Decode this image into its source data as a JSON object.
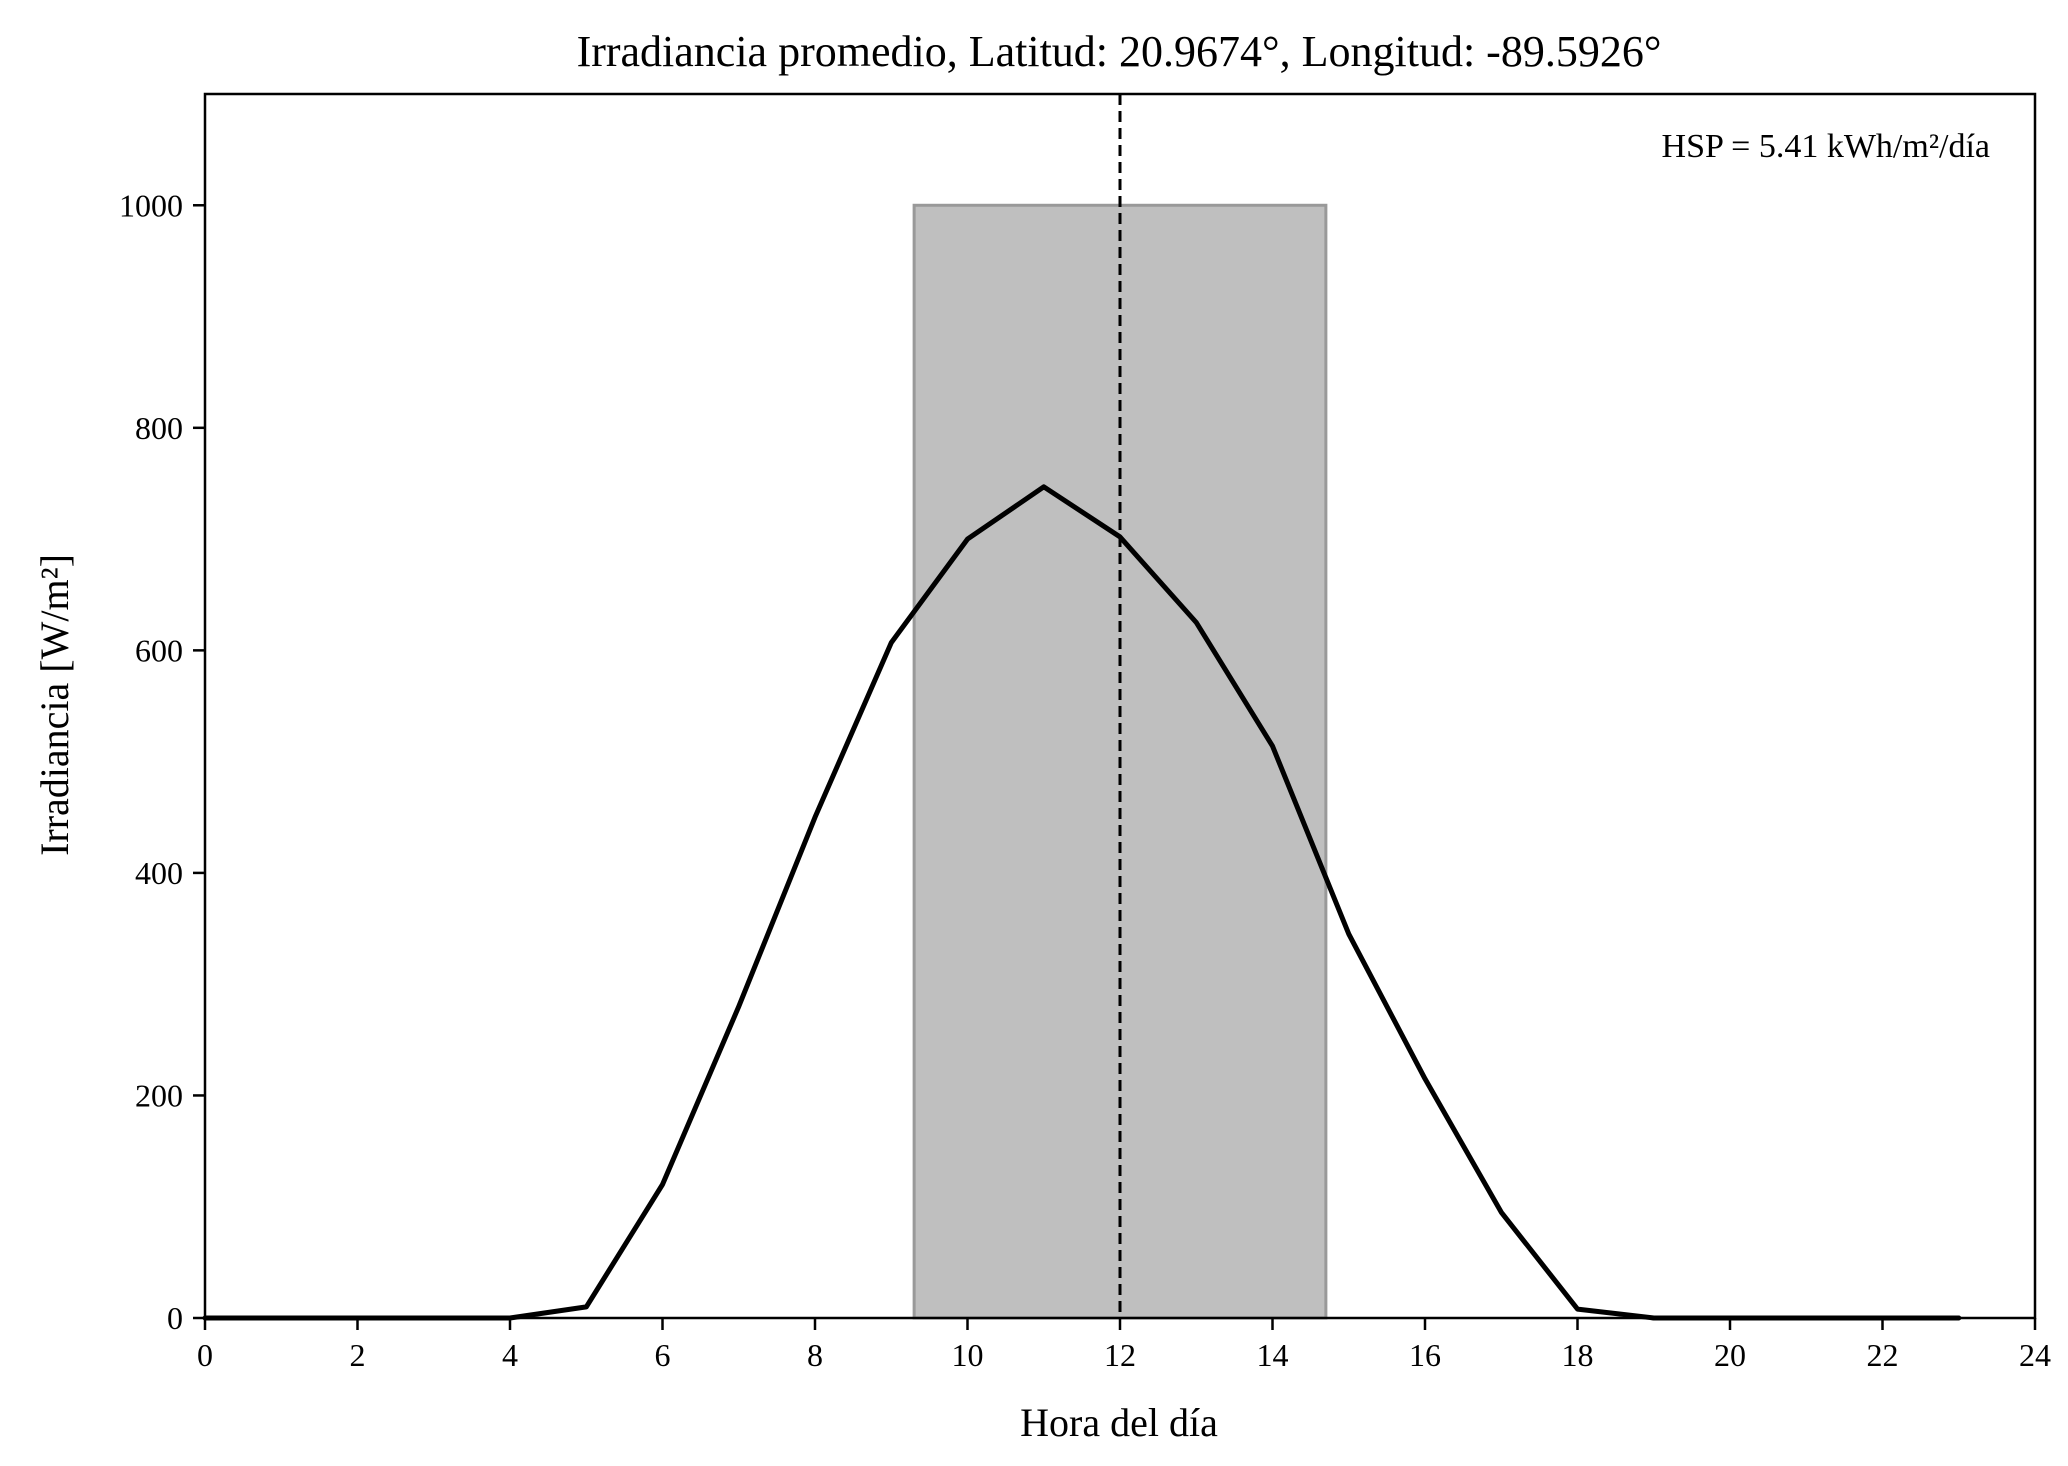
{
  "chart_data": {
    "type": "line",
    "title": "Irradiancia promedio, Latitud: 20.9674°, Longitud: -89.5926°",
    "xlabel": "Hora del día",
    "ylabel": "Irradiancia [W/m²]",
    "xlim": [
      0,
      24
    ],
    "ylim": [
      0,
      1100
    ],
    "xticks": [
      0,
      2,
      4,
      6,
      8,
      10,
      12,
      14,
      16,
      18,
      20,
      22,
      24
    ],
    "yticks": [
      0,
      200,
      400,
      600,
      800,
      1000
    ],
    "grid": false,
    "series": [
      {
        "x": [
          0,
          1,
          2,
          3,
          4,
          5,
          6,
          7,
          8,
          9,
          10,
          11,
          12,
          13,
          14,
          15,
          16,
          17,
          18,
          19,
          20,
          21,
          22,
          23
        ],
        "y": [
          0,
          0,
          0,
          0,
          0,
          10,
          120,
          280,
          450,
          607,
          700,
          747,
          702,
          625,
          514,
          345,
          215,
          95,
          8,
          0,
          0,
          0,
          0,
          0
        ],
        "color": "#000000"
      }
    ],
    "shaded_region": {
      "x_start": 9.3,
      "x_end": 14.7,
      "y_start": 0,
      "y_end": 1000,
      "color": "#bfbfbf",
      "edge_color": "#999999"
    },
    "reference_line": {
      "x": 12,
      "style": "dashed",
      "color": "#000000"
    },
    "annotation": {
      "text": "HSP = 5.41 kWh/m²/día",
      "position": "top-right"
    }
  }
}
